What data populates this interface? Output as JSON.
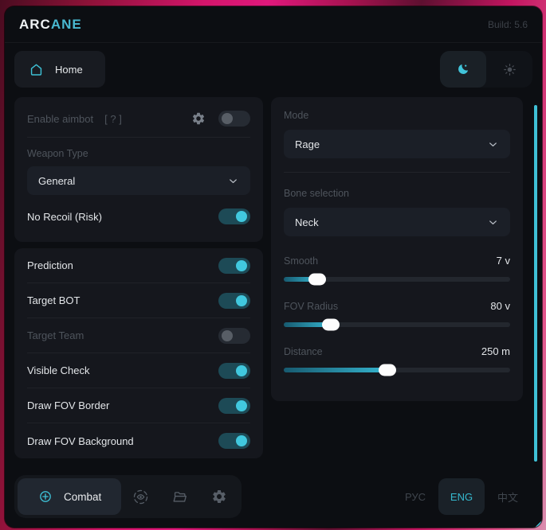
{
  "header": {
    "brand_prefix": "ARC",
    "brand_suffix": "ANE",
    "build": "Build: 5.6"
  },
  "nav": {
    "home_label": "Home"
  },
  "panels": {
    "aimbot": {
      "enable_label": "Enable aimbot",
      "help_text": "[ ? ]",
      "enable_on": false,
      "weapon_type_label": "Weapon Type",
      "weapon_type_value": "General",
      "no_recoil_label": "No Recoil (Risk)",
      "no_recoil_on": true
    },
    "toggles": [
      {
        "label": "Prediction",
        "on": true,
        "dim": false
      },
      {
        "label": "Target BOT",
        "on": true,
        "dim": false
      },
      {
        "label": "Target Team",
        "on": false,
        "dim": true
      },
      {
        "label": "Visible Check",
        "on": true,
        "dim": false
      },
      {
        "label": "Draw FOV Border",
        "on": true,
        "dim": false
      },
      {
        "label": "Draw FOV Background",
        "on": true,
        "dim": false
      }
    ],
    "targeting": {
      "mode_label": "Mode",
      "mode_value": "Rage",
      "bone_label": "Bone selection",
      "bone_value": "Neck",
      "sliders": [
        {
          "label": "Smooth",
          "value": "7 v",
          "percent": 15
        },
        {
          "label": "FOV Radius",
          "value": "80 v",
          "percent": 21
        },
        {
          "label": "Distance",
          "value": "250 m",
          "percent": 46
        }
      ]
    }
  },
  "footer": {
    "combat_label": "Combat",
    "languages": [
      {
        "label": "РУС",
        "active": false
      },
      {
        "label": "ENG",
        "active": true
      },
      {
        "label": "中文",
        "active": false
      }
    ]
  },
  "colors": {
    "accent": "#3ec1d6",
    "toggle_on_track": "#1d4a56",
    "toggle_on_knob": "#41c8de"
  }
}
